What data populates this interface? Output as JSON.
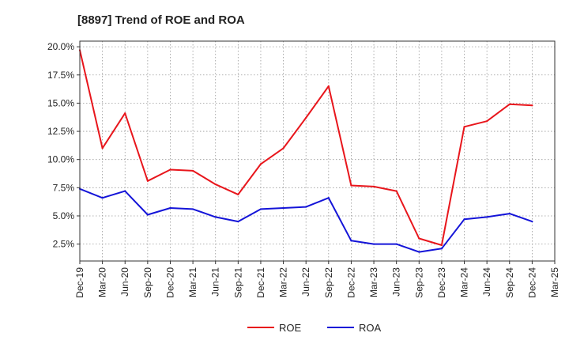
{
  "chart_data": {
    "type": "line",
    "title": "[8897]  Trend of ROE and ROA",
    "xlabel": "",
    "ylabel": "",
    "x": [
      "Dec-19",
      "Mar-20",
      "Jun-20",
      "Sep-20",
      "Dec-20",
      "Mar-21",
      "Jun-21",
      "Sep-21",
      "Dec-21",
      "Mar-22",
      "Jun-22",
      "Sep-22",
      "Dec-22",
      "Mar-23",
      "Jun-23",
      "Sep-23",
      "Dec-23",
      "Mar-24",
      "Jun-24",
      "Sep-24",
      "Dec-24",
      "Mar-25"
    ],
    "ylim": [
      1.0,
      20.5
    ],
    "yticks": [
      20.0,
      17.5,
      15.0,
      12.5,
      10.0,
      7.5,
      5.0,
      2.5
    ],
    "ytick_labels": [
      "20.0%",
      "17.5%",
      "15.0%",
      "12.5%",
      "10.0%",
      "7.5%",
      "5.0%",
      "2.5%"
    ],
    "grid": true,
    "legend_position": "bottom",
    "series": [
      {
        "name": "ROE",
        "color": "#e8161c",
        "values": [
          19.7,
          11.0,
          14.1,
          8.1,
          9.1,
          9.0,
          7.8,
          6.9,
          9.6,
          11.0,
          13.7,
          16.5,
          7.7,
          7.6,
          7.2,
          3.0,
          2.4,
          12.9,
          13.4,
          14.9,
          14.8,
          null
        ]
      },
      {
        "name": "ROA",
        "color": "#1414d8",
        "values": [
          7.4,
          6.6,
          7.2,
          5.1,
          5.7,
          5.6,
          4.9,
          4.5,
          5.6,
          5.7,
          5.8,
          6.6,
          2.8,
          2.5,
          2.5,
          1.8,
          2.1,
          4.7,
          4.9,
          5.2,
          4.5,
          null
        ]
      }
    ]
  }
}
